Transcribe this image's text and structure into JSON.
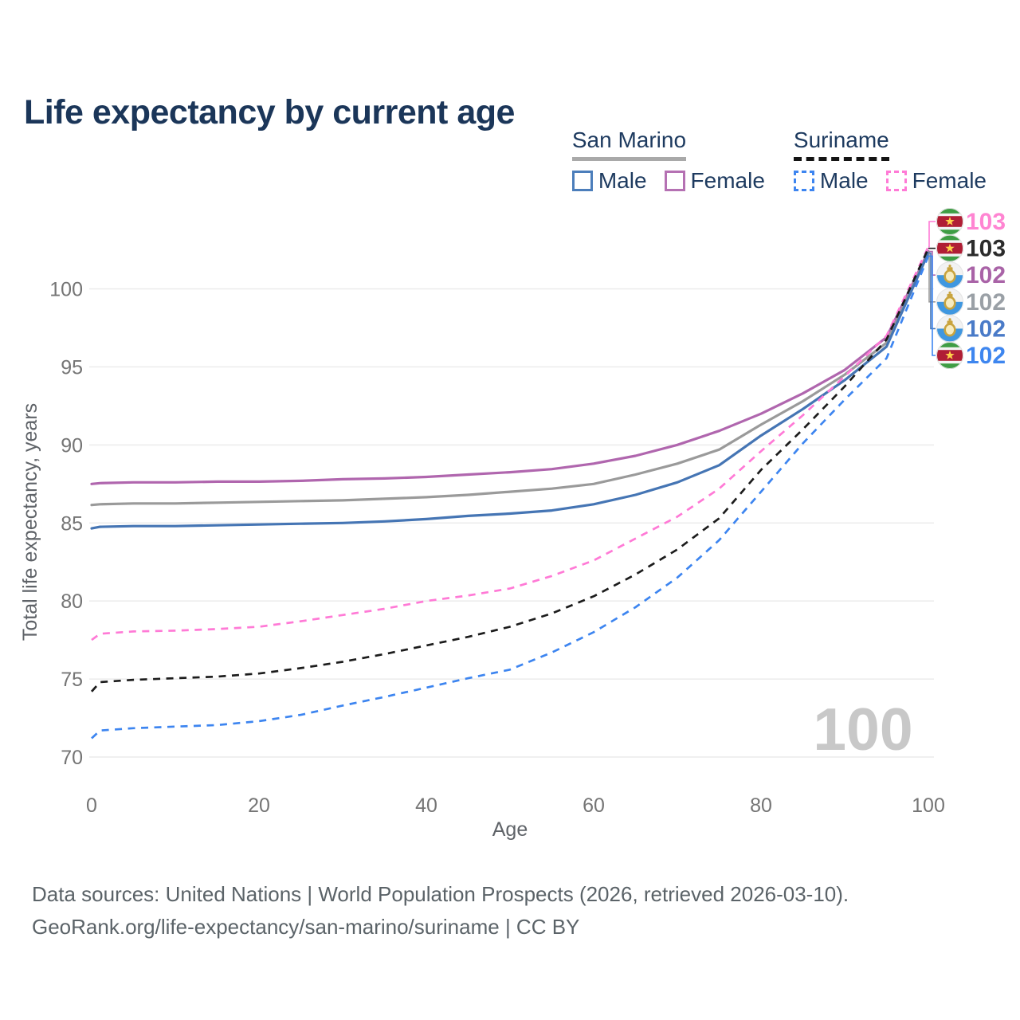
{
  "title": "Life expectancy by current age",
  "legend": {
    "groups": [
      {
        "label": "San Marino",
        "line_style": "solid",
        "underline_color": "#a9a9a9",
        "items": [
          {
            "label": "Male",
            "color": "#4c7ebb",
            "style": "solid"
          },
          {
            "label": "Female",
            "color": "#b571b3",
            "style": "solid"
          }
        ]
      },
      {
        "label": "Suriname",
        "line_style": "dashed",
        "underline_color": "#141414",
        "items": [
          {
            "label": "Male",
            "color": "#3d85f0",
            "style": "dashed"
          },
          {
            "label": "Female",
            "color": "#ff7ad6",
            "style": "dashed"
          }
        ]
      }
    ]
  },
  "chart_data": {
    "type": "line",
    "title": "Life expectancy by current age",
    "xlabel": "Age",
    "ylabel": "Total life expectancy, years",
    "xlim": [
      0,
      100
    ],
    "ylim": [
      70,
      103
    ],
    "x_ticks": [
      0,
      20,
      40,
      60,
      80,
      100
    ],
    "y_ticks": [
      70,
      75,
      80,
      85,
      90,
      95,
      100
    ],
    "grid": "horizontal",
    "age_indicator": "100",
    "x": [
      0,
      1,
      5,
      10,
      15,
      20,
      25,
      30,
      35,
      40,
      45,
      50,
      55,
      60,
      65,
      70,
      75,
      80,
      85,
      90,
      95,
      100
    ],
    "series": [
      {
        "id": "san-marino-female",
        "name": "San Marino Female",
        "country": "San Marino",
        "sex": "Female",
        "color": "#b066ae",
        "dashed": false,
        "end_label": "102",
        "label_color": "#a963a7",
        "flag": "san-marino",
        "end_row": 2,
        "values": [
          87.5,
          87.55,
          87.6,
          87.6,
          87.65,
          87.65,
          87.7,
          87.8,
          87.85,
          87.95,
          88.1,
          88.25,
          88.45,
          88.8,
          89.3,
          90.0,
          90.9,
          92.0,
          93.3,
          94.8,
          96.9,
          102.4
        ]
      },
      {
        "id": "san-marino-total",
        "name": "San Marino",
        "country": "San Marino",
        "sex": "Both",
        "color": "#9a9a9a",
        "dashed": false,
        "end_label": "102",
        "label_color": "#9aa0a6",
        "flag": "san-marino",
        "end_row": 3,
        "values": [
          86.15,
          86.2,
          86.25,
          86.25,
          86.3,
          86.35,
          86.4,
          86.45,
          86.55,
          86.65,
          86.8,
          87.0,
          87.2,
          87.5,
          88.1,
          88.8,
          89.7,
          91.3,
          92.8,
          94.5,
          96.55,
          102.35
        ]
      },
      {
        "id": "san-marino-male",
        "name": "San Marino Male",
        "country": "San Marino",
        "sex": "Male",
        "color": "#4575b4",
        "dashed": false,
        "end_label": "102",
        "label_color": "#4a7bc8",
        "flag": "san-marino",
        "end_row": 4,
        "values": [
          84.65,
          84.75,
          84.8,
          84.8,
          84.85,
          84.9,
          84.95,
          85.0,
          85.1,
          85.25,
          85.45,
          85.6,
          85.8,
          86.2,
          86.8,
          87.6,
          88.7,
          90.6,
          92.3,
          94.15,
          96.3,
          102.3
        ]
      },
      {
        "id": "suriname-female",
        "name": "Suriname Female",
        "country": "Suriname",
        "sex": "Female",
        "color": "#ff7ad6",
        "dashed": true,
        "end_label": "103",
        "label_color": "#ff85d2",
        "flag": "suriname",
        "end_row": 0,
        "values": [
          77.5,
          77.9,
          78.05,
          78.1,
          78.2,
          78.35,
          78.7,
          79.1,
          79.5,
          80.0,
          80.35,
          80.8,
          81.6,
          82.6,
          84.0,
          85.4,
          87.2,
          89.6,
          91.9,
          94.4,
          97.0,
          102.7
        ]
      },
      {
        "id": "suriname-total",
        "name": "Suriname",
        "country": "Suriname",
        "sex": "Both",
        "color": "#1c1c1c",
        "dashed": true,
        "end_label": "103",
        "label_color": "#2b2b2b",
        "flag": "suriname",
        "end_row": 1,
        "values": [
          74.2,
          74.8,
          74.95,
          75.05,
          75.15,
          75.35,
          75.7,
          76.1,
          76.6,
          77.15,
          77.7,
          78.35,
          79.2,
          80.3,
          81.7,
          83.3,
          85.3,
          88.4,
          91.0,
          93.75,
          96.75,
          102.6
        ]
      },
      {
        "id": "suriname-male",
        "name": "Suriname Male",
        "country": "Suriname",
        "sex": "Male",
        "color": "#3d85f0",
        "dashed": true,
        "end_label": "102",
        "label_color": "#3e86ef",
        "flag": "suriname",
        "end_row": 5,
        "values": [
          71.2,
          71.7,
          71.85,
          71.95,
          72.05,
          72.3,
          72.7,
          73.3,
          73.85,
          74.45,
          75.05,
          75.6,
          76.7,
          78.0,
          79.6,
          81.5,
          83.9,
          87.0,
          90.1,
          92.9,
          95.55,
          102.1
        ]
      }
    ]
  },
  "footer": {
    "line1": "Data sources: United Nations | World Population Prospects (2026, retrieved 2026-03-10).",
    "line2": "GeoRank.org/life-expectancy/san-marino/suriname | CC BY"
  }
}
